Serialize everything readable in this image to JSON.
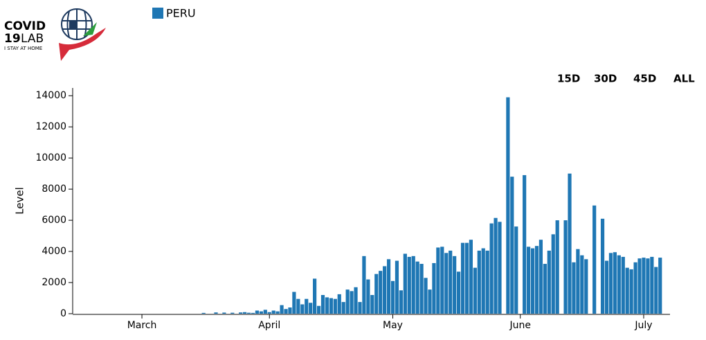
{
  "header": {
    "logo_line1": "COVID",
    "logo_line2a": "19",
    "logo_line2b": "LAB",
    "logo_line3": "I STAY AT HOME"
  },
  "controls": [
    "15D",
    "30D",
    "45D",
    "ALL"
  ],
  "chart_data": {
    "type": "bar",
    "ylabel": "Level",
    "x": [
      76,
      77,
      78,
      79,
      80,
      81,
      82,
      83,
      84,
      85,
      86,
      87,
      88,
      89,
      90,
      91,
      92,
      93,
      94,
      95,
      96,
      97,
      98,
      99,
      100,
      101,
      102,
      103,
      104,
      105,
      106,
      107,
      108,
      109,
      110,
      111,
      112,
      113,
      114,
      115,
      116,
      117,
      118,
      119,
      120,
      121,
      122,
      123,
      124,
      125,
      126,
      127,
      128,
      129,
      130,
      131,
      132,
      133,
      134,
      135,
      136,
      137,
      138,
      139,
      140,
      141,
      142,
      143,
      144,
      145,
      146,
      147,
      148,
      149,
      150,
      151,
      152,
      153,
      154,
      155,
      156,
      157,
      158,
      159,
      160,
      161,
      162,
      163,
      164,
      165,
      166,
      167,
      168,
      169,
      170,
      171,
      172,
      173,
      174,
      175,
      176,
      177,
      178,
      179,
      180,
      181,
      182,
      183,
      184,
      185,
      186,
      187
    ],
    "series": [
      {
        "name": "PERU",
        "color": "#1f77b4",
        "values": [
          50,
          0,
          0,
          80,
          0,
          70,
          0,
          60,
          0,
          80,
          100,
          60,
          50,
          200,
          150,
          250,
          100,
          200,
          150,
          550,
          300,
          400,
          1400,
          950,
          600,
          950,
          700,
          2250,
          500,
          1200,
          1050,
          1000,
          950,
          1250,
          750,
          1550,
          1450,
          1700,
          750,
          3700,
          2200,
          1200,
          2550,
          2750,
          3050,
          3500,
          2100,
          3400,
          1500,
          3850,
          3650,
          3700,
          3350,
          3200,
          2300,
          1550,
          3250,
          4250,
          4300,
          3900,
          4050,
          3700,
          2700,
          4550,
          4550,
          4750,
          2950,
          4050,
          4200,
          4050,
          5800,
          6150,
          5900,
          0,
          13900,
          8800,
          5600,
          0,
          8900,
          4300,
          4200,
          4350,
          4750,
          3200,
          4050,
          5100,
          6000,
          0,
          6000,
          9000,
          3300,
          4150,
          3750,
          3500,
          0,
          6950,
          0,
          6100,
          3400,
          3900,
          3950,
          3750,
          3650,
          2950,
          2850,
          3300,
          3550,
          3600,
          3550,
          3650,
          3000,
          3600
        ]
      }
    ],
    "xlim": [
      44.5,
      189.4
    ],
    "xticks": [
      {
        "value": 61,
        "label": "March"
      },
      {
        "value": 92,
        "label": "April"
      },
      {
        "value": 122,
        "label": "May"
      },
      {
        "value": 153,
        "label": "June"
      },
      {
        "value": 183,
        "label": "July"
      }
    ],
    "ylim": [
      0,
      14500
    ],
    "yticks": [
      0,
      2000,
      4000,
      6000,
      8000,
      10000,
      12000,
      14000
    ]
  }
}
